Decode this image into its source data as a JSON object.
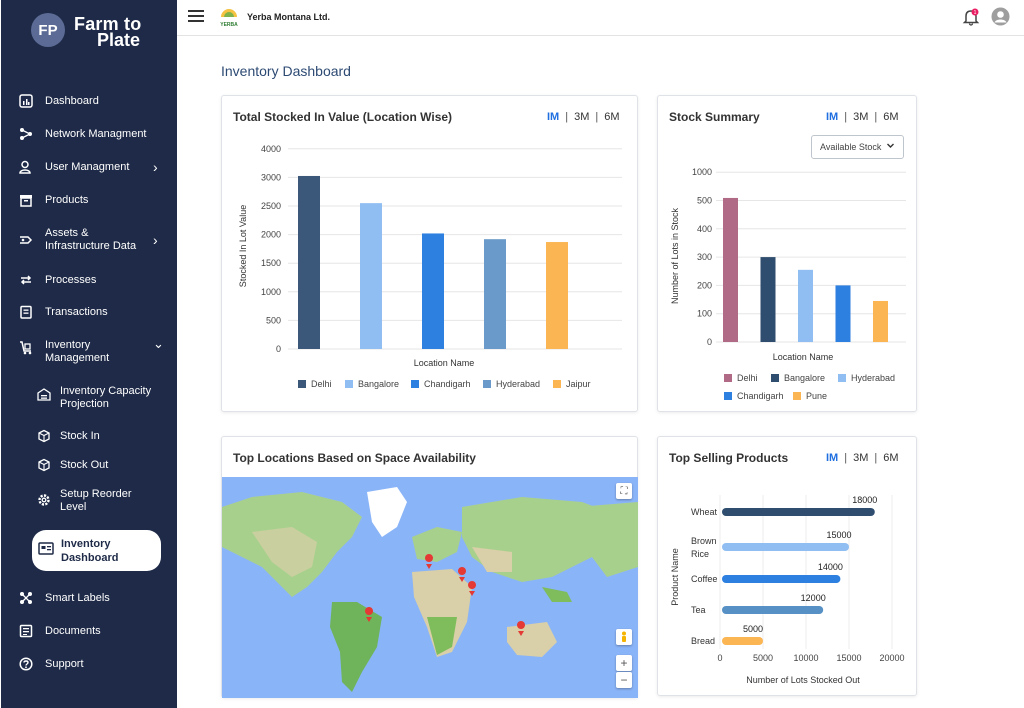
{
  "brand": {
    "line1": "Farm to",
    "line2": "Plate",
    "mark": "FP"
  },
  "sidebar": {
    "items": [
      {
        "label": "Dashboard",
        "icon": "dashboard-icon"
      },
      {
        "label": "Network Managment",
        "icon": "network-icon"
      },
      {
        "label": "User Managment",
        "icon": "user-icon",
        "chevron": "›"
      },
      {
        "label": "Products",
        "icon": "products-icon"
      },
      {
        "label": "Assets &",
        "label2": "Infrastructure Data",
        "icon": "assets-icon",
        "chevron": "›"
      },
      {
        "label": "Processes",
        "icon": "processes-icon"
      },
      {
        "label": "Transactions",
        "icon": "transactions-icon"
      },
      {
        "label": "Inventory",
        "label2": "Management",
        "icon": "inventory-icon",
        "chevron": "⌄"
      }
    ],
    "sub_items": [
      {
        "label": "Inventory Capacity",
        "label2": "Projection"
      },
      {
        "label": "Stock In"
      },
      {
        "label": "Stock Out"
      },
      {
        "label": "Setup Reorder",
        "label2": "Level"
      }
    ],
    "active": {
      "label": "Inventory",
      "label2": "Dashboard"
    },
    "bottom_items": [
      {
        "label": "Smart Labels"
      },
      {
        "label": "Documents"
      },
      {
        "label": "Support"
      }
    ]
  },
  "header": {
    "company": "Yerba Montana Ltd.",
    "company_logo_text": "YERBA",
    "notification_count": "1"
  },
  "page_title": "Inventory Dashboard",
  "range_tabs": [
    "IM",
    "3M",
    "6M"
  ],
  "cards": {
    "stocked": {
      "title": "Total Stocked In Value (Location Wise)"
    },
    "summary": {
      "title": "Stock Summary",
      "dropdown": "Available Stock"
    },
    "locations": {
      "title": "Top Locations Based on Space Availability"
    },
    "selling": {
      "title": "Top Selling Products"
    }
  },
  "chart_data": [
    {
      "type": "bar",
      "title": "Total Stocked In Value (Location Wise)",
      "xlabel": "Location Name",
      "ylabel": "Stocked In Lot Value",
      "categories": [
        "Delhi",
        "Bangalore",
        "Chandigarh",
        "Hyderabad",
        "Jaipur"
      ],
      "values": [
        3050,
        2550,
        2020,
        1920,
        1870
      ],
      "colors": [
        "#3b5779",
        "#90bef2",
        "#2d7fe0",
        "#6a9ac9",
        "#fbb552"
      ],
      "yticks": [
        "0",
        "500",
        "1000",
        "1500",
        "2000",
        "2500",
        "3000",
        "4000"
      ],
      "ylim": [
        0,
        4000
      ],
      "legend": "bottom",
      "grid": true
    },
    {
      "type": "bar",
      "title": "Stock Summary",
      "xlabel": "Location Name",
      "ylabel": "Number of Lots in Stock",
      "categories": [
        "Delhi",
        "Bangalore",
        "Hyderabad",
        "Chandigarh",
        "Pune"
      ],
      "values": [
        545,
        300,
        255,
        200,
        145
      ],
      "colors": [
        "#b06a86",
        "#2f4d6e",
        "#90bef2",
        "#2d7fe0",
        "#fbb552"
      ],
      "yticks": [
        "0",
        "100",
        "200",
        "300",
        "400",
        "500",
        "1000"
      ],
      "ylim": [
        0,
        1000
      ],
      "legend": "bottom",
      "grid": true
    },
    {
      "type": "bar",
      "orientation": "horizontal",
      "title": "Top Selling Products",
      "xlabel": "Number of Lots Stocked Out",
      "ylabel": "Product Name",
      "categories": [
        "Wheat",
        "Brown Rice",
        "Coffee",
        "Tea",
        "Bread"
      ],
      "values": [
        18000,
        15000,
        14000,
        12000,
        5000
      ],
      "value_labels": [
        "18000",
        "15000",
        "14000",
        "12000",
        "5000"
      ],
      "colors": [
        "#2f4d6e",
        "#90bef2",
        "#2d7fe0",
        "#5790c4",
        "#fbb552"
      ],
      "xticks": [
        "0",
        "5000",
        "10000",
        "15000",
        "20000"
      ],
      "xlim": [
        0,
        20000
      ],
      "grid": true
    }
  ],
  "map": {
    "markers": 5,
    "zoom_in": "+",
    "zoom_out": "−"
  }
}
